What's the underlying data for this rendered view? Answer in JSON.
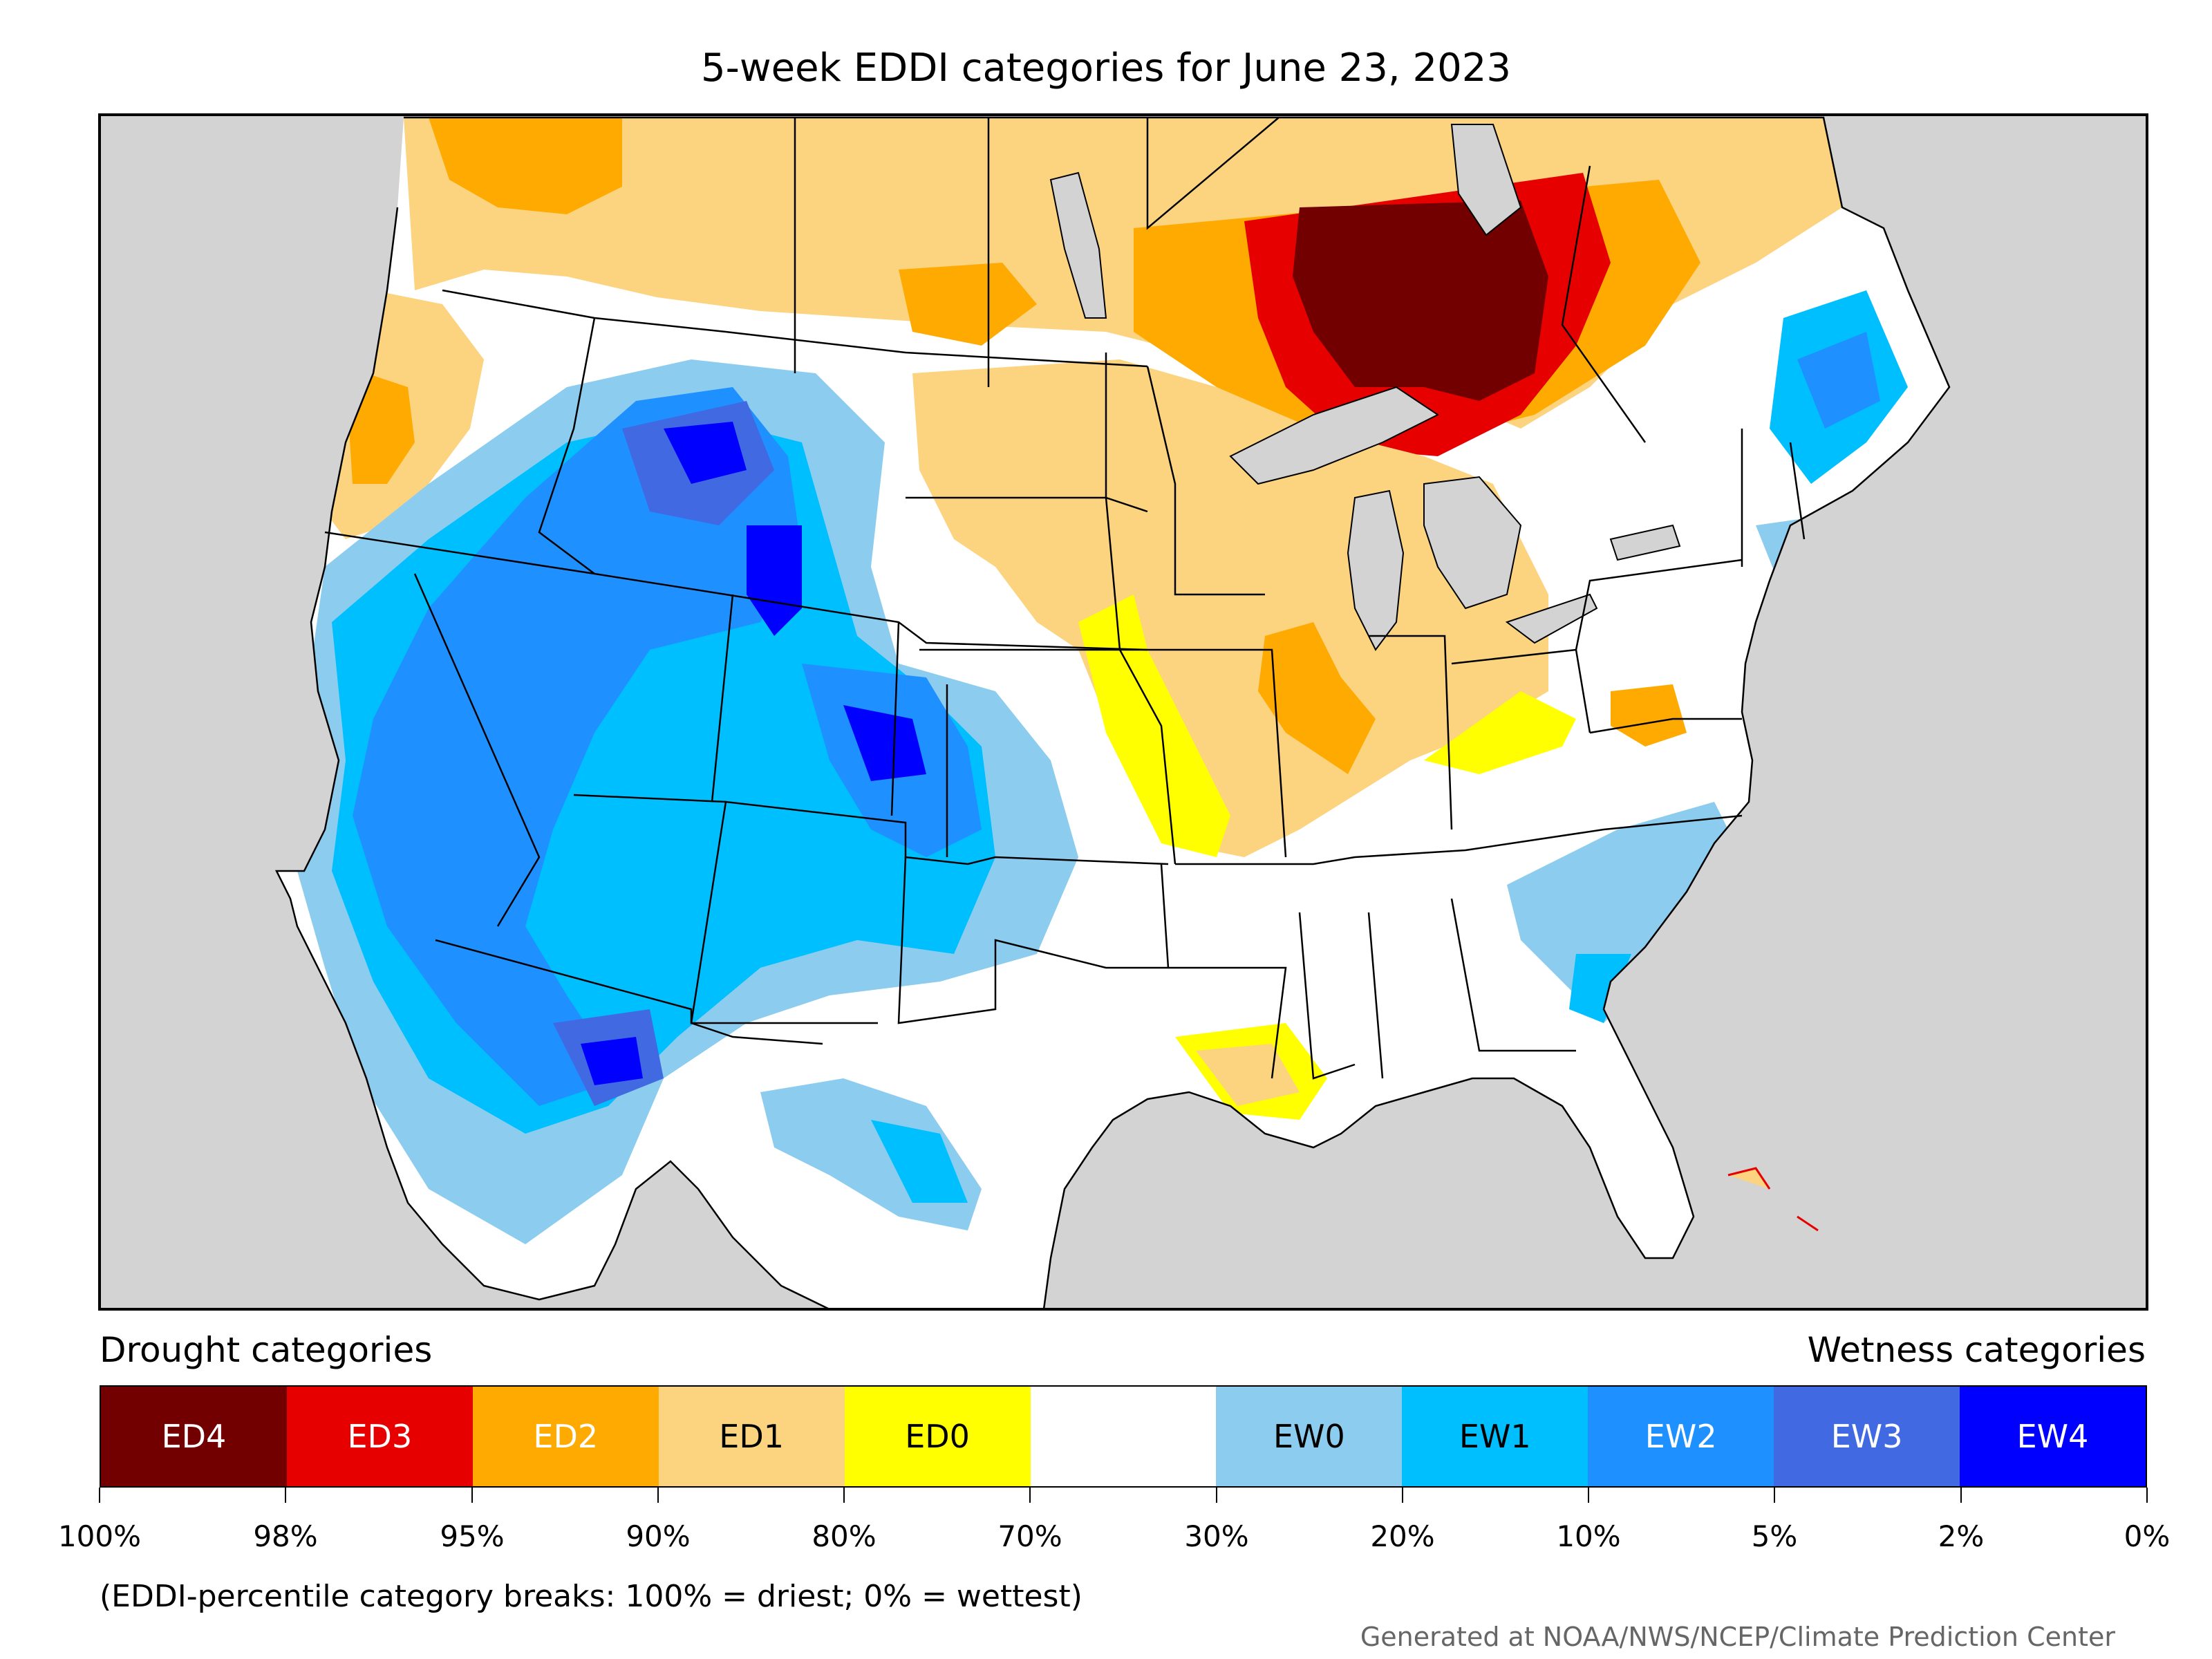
{
  "title": "5-week EDDI categories for June 23, 2023",
  "legend": {
    "drought_header": "Drought categories",
    "wetness_header": "Wetness categories",
    "categories": [
      {
        "label": "ED4",
        "color": "#730000",
        "text_color": "#ffffff"
      },
      {
        "label": "ED3",
        "color": "#e60000",
        "text_color": "#ffffff"
      },
      {
        "label": "ED2",
        "color": "#ffaa00",
        "text_color": "#ffffff"
      },
      {
        "label": "ED1",
        "color": "#fcd37f",
        "text_color": "#000000"
      },
      {
        "label": "ED0",
        "color": "#ffff00",
        "text_color": "#000000"
      },
      {
        "label": "",
        "color": "#ffffff",
        "text_color": "#000000"
      },
      {
        "label": "EW0",
        "color": "#8ccdef",
        "text_color": "#000000"
      },
      {
        "label": "EW1",
        "color": "#00bfff",
        "text_color": "#000000"
      },
      {
        "label": "EW2",
        "color": "#1e90ff",
        "text_color": "#ffffff"
      },
      {
        "label": "EW3",
        "color": "#4169e1",
        "text_color": "#ffffff"
      },
      {
        "label": "EW4",
        "color": "#0000ff",
        "text_color": "#ffffff"
      }
    ],
    "breaks": [
      "100%",
      "98%",
      "95%",
      "90%",
      "80%",
      "70%",
      "30%",
      "20%",
      "10%",
      "5%",
      "2%",
      "0%"
    ]
  },
  "note": "(EDDI-percentile category breaks: 100% = driest; 0% = wettest)",
  "credit": "Generated at NOAA/NWS/NCEP/Climate Prediction Center",
  "map_colors": {
    "background": "#d3d3d3",
    "lakes": "#d3d3d3",
    "boundaries": "#000000"
  }
}
